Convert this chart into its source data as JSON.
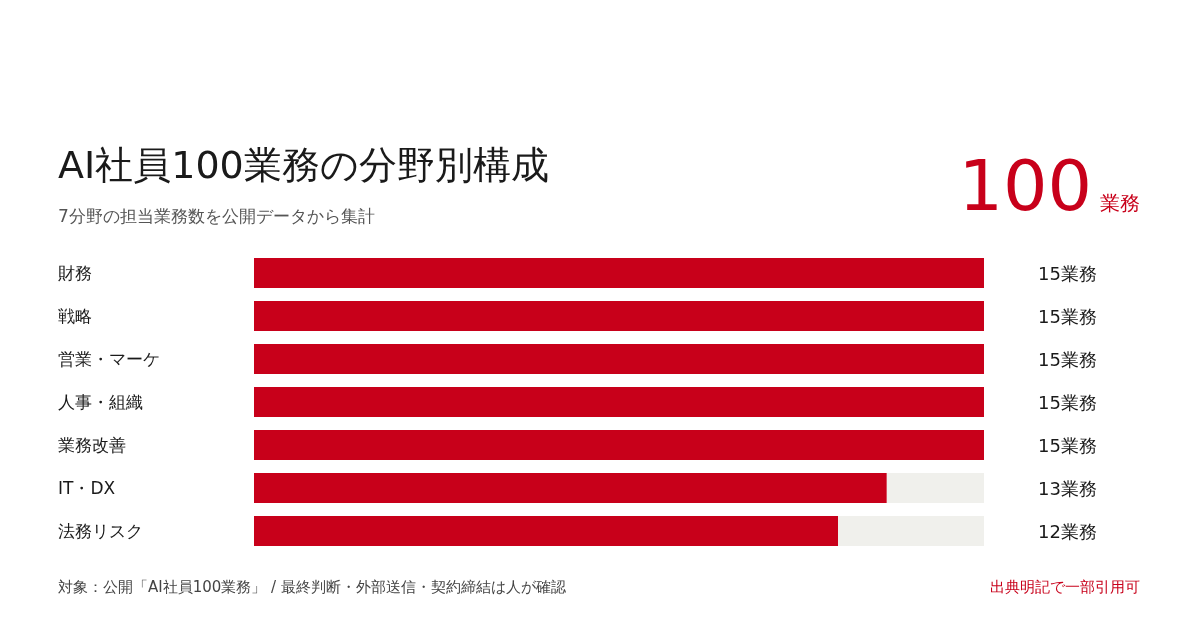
{
  "chart_data": {
    "type": "bar",
    "orientation": "horizontal",
    "title": "AI社員100業務の分野別構成",
    "subtitle": "7分野の担当業務数を公開データから集計",
    "categories": [
      "財務",
      "戦略",
      "営業・マーケ",
      "人事・組織",
      "業務改善",
      "IT・DX",
      "法務リスク"
    ],
    "values": [
      15,
      15,
      15,
      15,
      15,
      13,
      12
    ],
    "value_labels": [
      "15業務",
      "15業務",
      "15業務",
      "15業務",
      "15業務",
      "13業務",
      "12業務"
    ],
    "color": "#c8001a",
    "xlim": [
      0,
      15
    ],
    "annotations": [
      "100業務",
      "対象：公開「AI社員100業務」 / 最終判断・外部送信・契約締結は人が確認",
      "出典明記で一部引用可"
    ]
  }
}
